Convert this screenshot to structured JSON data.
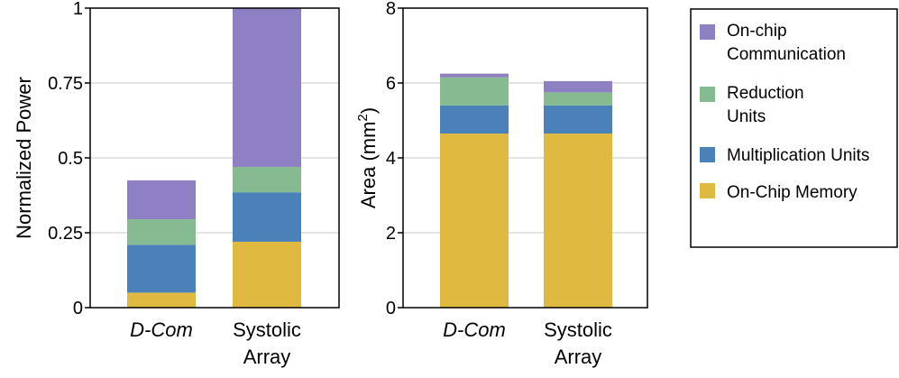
{
  "colors": {
    "memory": "#dfb940",
    "multiplication": "#4b81b9",
    "reduction": "#86bb92",
    "communication": "#8e80c2",
    "grid": "#c8c8c8",
    "axis": "#000000"
  },
  "legend": {
    "items": [
      {
        "key": "communication",
        "lines": [
          "On-chip",
          "Communication"
        ]
      },
      {
        "key": "reduction",
        "lines": [
          "Reduction",
          "Units"
        ]
      },
      {
        "key": "multiplication",
        "lines": [
          "Multiplication Units"
        ]
      },
      {
        "key": "memory",
        "lines": [
          "On-Chip Memory"
        ]
      }
    ]
  },
  "chart_data": [
    {
      "type": "bar",
      "stacked": true,
      "title": "",
      "xlabel": "",
      "ylabel": "Normalized Power",
      "ylim": [
        0,
        1
      ],
      "yticks": [
        0,
        0.25,
        0.5,
        0.75,
        1
      ],
      "ytick_labels": [
        "0",
        "0.25",
        "0.5",
        "0.75",
        "1"
      ],
      "grid": true,
      "categories": [
        {
          "lines": [
            "D-Com"
          ],
          "italic": true
        },
        {
          "lines": [
            "Systolic",
            "Array"
          ],
          "italic": false
        }
      ],
      "series": [
        {
          "name": "On-Chip Memory",
          "key": "memory",
          "values": [
            0.05,
            0.22
          ]
        },
        {
          "name": "Multiplication Units",
          "key": "multiplication",
          "values": [
            0.16,
            0.165
          ]
        },
        {
          "name": "Reduction Units",
          "key": "reduction",
          "values": [
            0.085,
            0.085
          ]
        },
        {
          "name": "On-chip Communication",
          "key": "communication",
          "values": [
            0.13,
            0.53
          ]
        }
      ]
    },
    {
      "type": "bar",
      "stacked": true,
      "title": "",
      "xlabel": "",
      "ylabel": "Area (mm",
      "ylabel_sup": "2",
      "ylabel_end": ")",
      "ylim": [
        0,
        8
      ],
      "yticks": [
        0,
        2,
        4,
        6,
        8
      ],
      "ytick_labels": [
        "0",
        "2",
        "4",
        "6",
        "8"
      ],
      "grid": true,
      "categories": [
        {
          "lines": [
            "D-Com"
          ],
          "italic": true
        },
        {
          "lines": [
            "Systolic",
            "Array"
          ],
          "italic": false
        }
      ],
      "series": [
        {
          "name": "On-Chip Memory",
          "key": "memory",
          "values": [
            4.65,
            4.65
          ]
        },
        {
          "name": "Multiplication Units",
          "key": "multiplication",
          "values": [
            0.75,
            0.75
          ]
        },
        {
          "name": "Reduction Units",
          "key": "reduction",
          "values": [
            0.75,
            0.35
          ]
        },
        {
          "name": "On-chip Communication",
          "key": "communication",
          "values": [
            0.1,
            0.3
          ]
        }
      ]
    }
  ]
}
